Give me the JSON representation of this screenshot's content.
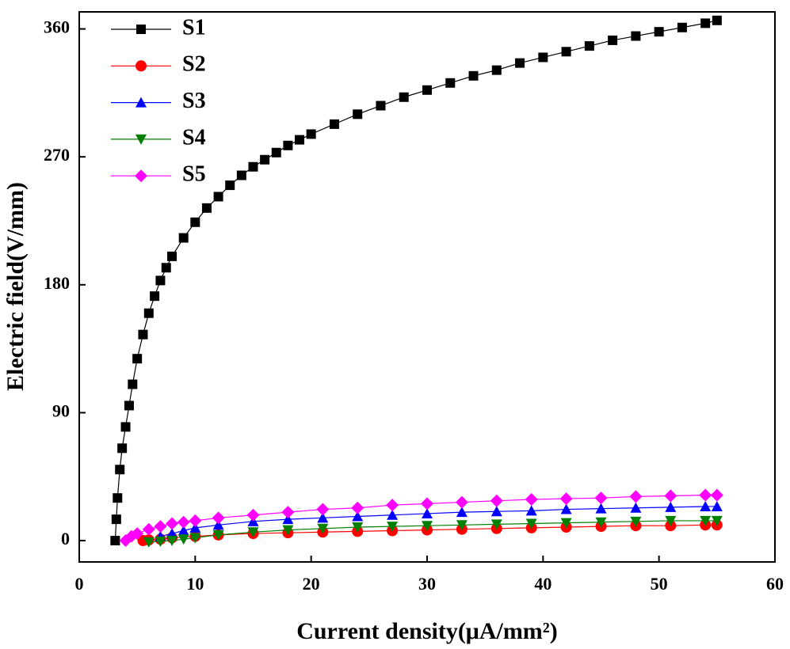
{
  "chart_data": {
    "type": "scatter-line",
    "x_label": "Current density(μA/mm²)",
    "y_label": "Electric field(V/mm)",
    "xlim": [
      0,
      60
    ],
    "ylim": [
      -15,
      372
    ],
    "xticks": [
      0,
      10,
      20,
      30,
      40,
      50,
      60
    ],
    "yticks": [
      0,
      90,
      180,
      270,
      360
    ],
    "legend": "upper left",
    "series": [
      {
        "name": "S1",
        "color": "#000000",
        "marker": "square",
        "x": [
          3.1,
          3.2,
          3.3,
          3.5,
          3.7,
          4,
          4.3,
          4.6,
          5,
          5.5,
          6,
          6.5,
          7,
          7.5,
          8,
          9,
          10,
          11,
          12,
          13,
          14,
          15,
          16,
          17,
          18,
          19,
          20,
          22,
          24,
          26,
          28,
          30,
          32,
          34,
          36,
          38,
          40,
          42,
          44,
          46,
          48,
          50,
          52,
          54,
          55
        ],
        "values": [
          0,
          15,
          30,
          50,
          65,
          80,
          95,
          110,
          128,
          145,
          160,
          172,
          183,
          192,
          200,
          213,
          224,
          234,
          242,
          250,
          257,
          263,
          268,
          273,
          278,
          282,
          286,
          293,
          300,
          306,
          312,
          317,
          322,
          327,
          331,
          336,
          340,
          344,
          348,
          352,
          355,
          358,
          361,
          364,
          366
        ]
      },
      {
        "name": "S2",
        "color": "#ff0000",
        "marker": "circle",
        "x": [
          5.5,
          6,
          7,
          8,
          10,
          12,
          15,
          18,
          21,
          24,
          27,
          30,
          33,
          36,
          39,
          42,
          45,
          48,
          51,
          54,
          55
        ],
        "values": [
          0,
          0.5,
          1,
          2,
          3,
          4,
          5,
          5.5,
          6,
          6.5,
          7,
          7.5,
          8,
          8.5,
          9,
          9.5,
          10,
          10.5,
          10.5,
          11,
          11
        ]
      },
      {
        "name": "S3",
        "color": "#0000ff",
        "marker": "triangle-up",
        "x": [
          7,
          8,
          9,
          10,
          12,
          15,
          18,
          21,
          24,
          27,
          30,
          33,
          36,
          39,
          42,
          45,
          48,
          51,
          54,
          55
        ],
        "values": [
          3,
          5,
          7,
          9,
          11,
          13.5,
          15,
          16,
          17,
          18,
          19,
          20,
          20.5,
          21,
          22,
          22.5,
          23,
          23.5,
          24,
          24
        ]
      },
      {
        "name": "S4",
        "color": "#008000",
        "marker": "triangle-down",
        "x": [
          6,
          7,
          8,
          9,
          10,
          12,
          15,
          18,
          21,
          24,
          27,
          30,
          33,
          36,
          39,
          42,
          45,
          48,
          51,
          54,
          55
        ],
        "values": [
          -1,
          -0.5,
          0,
          1,
          2,
          4,
          6,
          7.5,
          8.5,
          9.5,
          10,
          10.5,
          11,
          11.5,
          12,
          12.5,
          13,
          13.5,
          14,
          14,
          14
        ]
      },
      {
        "name": "S5",
        "color": "#ff00ff",
        "marker": "diamond",
        "x": [
          4,
          4.5,
          5,
          6,
          7,
          8,
          9,
          10,
          12,
          15,
          18,
          21,
          24,
          27,
          30,
          33,
          36,
          39,
          42,
          45,
          48,
          51,
          54,
          55
        ],
        "values": [
          0,
          3,
          5,
          8,
          10,
          12,
          13,
          14,
          16,
          18,
          20,
          22,
          23,
          25,
          26,
          27,
          28,
          29,
          29.5,
          30,
          31,
          31.5,
          32,
          32
        ]
      }
    ]
  }
}
